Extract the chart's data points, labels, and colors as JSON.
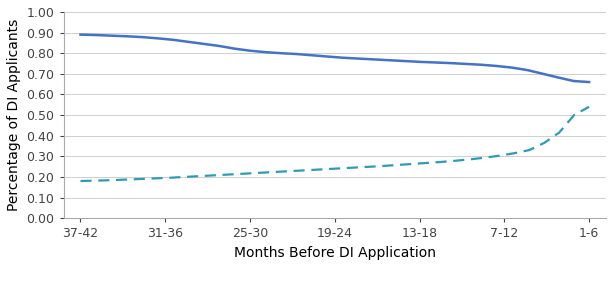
{
  "x_labels": [
    "37-42",
    "31-36",
    "25-30",
    "19-24",
    "13-18",
    "7-12",
    "1-6"
  ],
  "employment": [
    0.89,
    0.888,
    0.885,
    0.882,
    0.878,
    0.872,
    0.865,
    0.855,
    0.845,
    0.835,
    0.822,
    0.812,
    0.805,
    0.8,
    0.796,
    0.79,
    0.784,
    0.778,
    0.774,
    0.77,
    0.766,
    0.762,
    0.758,
    0.755,
    0.752,
    0.748,
    0.744,
    0.738,
    0.73,
    0.718,
    0.7,
    0.682,
    0.665,
    0.66
  ],
  "not_working": [
    0.18,
    0.182,
    0.184,
    0.187,
    0.19,
    0.193,
    0.196,
    0.2,
    0.204,
    0.208,
    0.212,
    0.216,
    0.22,
    0.224,
    0.228,
    0.232,
    0.236,
    0.24,
    0.244,
    0.248,
    0.252,
    0.257,
    0.262,
    0.267,
    0.272,
    0.278,
    0.285,
    0.293,
    0.303,
    0.315,
    0.33,
    0.365,
    0.415,
    0.5,
    0.54
  ],
  "employment_color": "#4472C4",
  "not_working_color": "#2E9BB5",
  "xlabel": "Months Before DI Application",
  "ylabel": "Percentage of DI Applicants",
  "ylim": [
    0.0,
    1.0
  ],
  "yticks": [
    0.0,
    0.1,
    0.2,
    0.3,
    0.4,
    0.5,
    0.6,
    0.7,
    0.8,
    0.9,
    1.0
  ],
  "background_color": "#ffffff",
  "grid_color": "#c8c8c8"
}
